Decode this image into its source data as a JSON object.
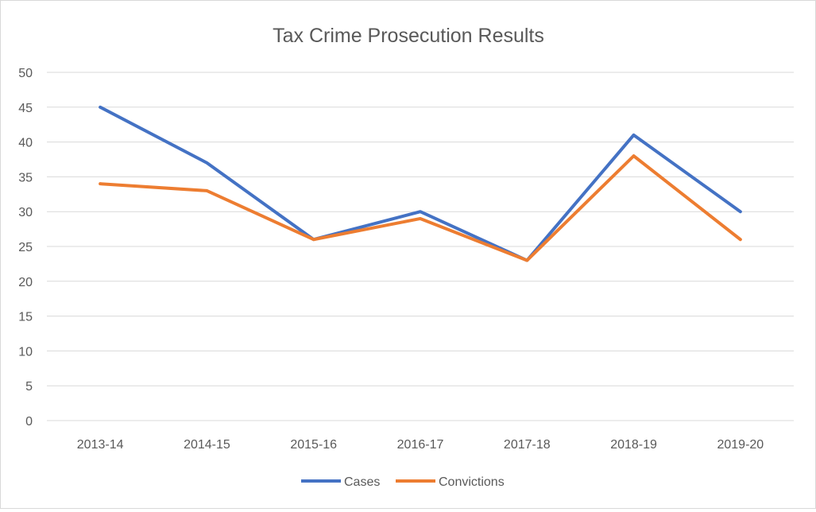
{
  "chart_data": {
    "type": "line",
    "title": "Tax Crime Prosecution Results",
    "categories": [
      "2013-14",
      "2014-15",
      "2015-16",
      "2016-17",
      "2017-18",
      "2018-19",
      "2019-20"
    ],
    "series": [
      {
        "name": "Cases",
        "color": "#4472C4",
        "values": [
          45,
          37,
          26,
          30,
          23,
          41,
          30
        ]
      },
      {
        "name": "Convictions",
        "color": "#ED7D31",
        "values": [
          34,
          33,
          26,
          29,
          23,
          38,
          26
        ]
      }
    ],
    "ylim": [
      0,
      50
    ],
    "yticks": [
      0,
      5,
      10,
      15,
      20,
      25,
      30,
      35,
      40,
      45,
      50
    ],
    "grid": true,
    "legend": "bottom"
  }
}
